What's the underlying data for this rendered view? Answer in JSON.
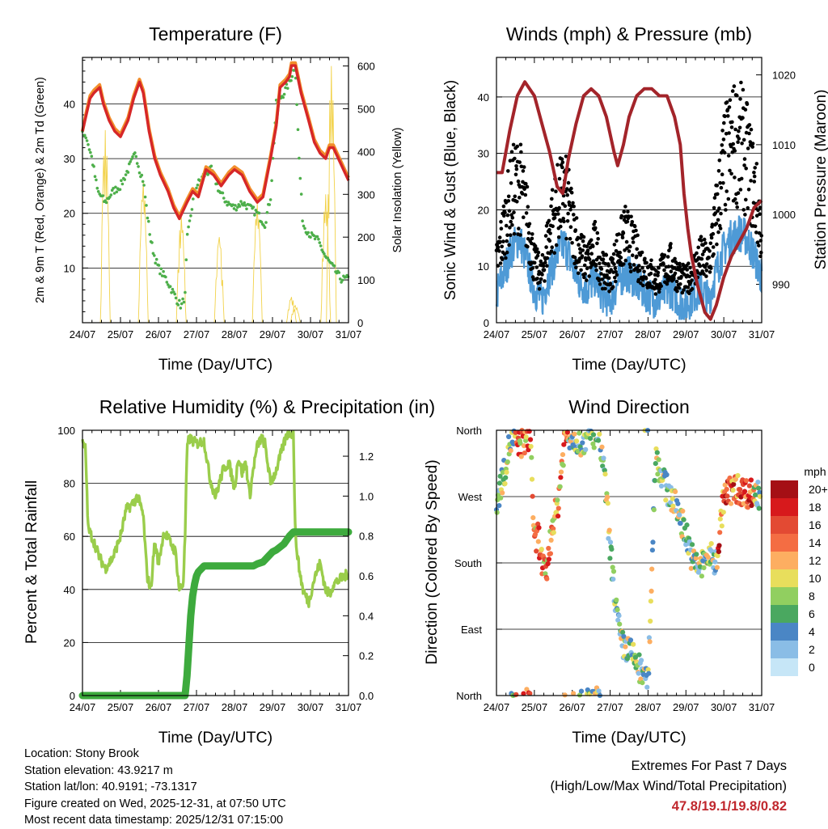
{
  "chart_data": [
    {
      "id": "temperature",
      "type": "line",
      "title": "Temperature (F)",
      "xlabel": "Time (Day/UTC)",
      "ylabel": "2m & 9m T (Red, Orange) & 2m Td (Green)",
      "y2label": "Solar Insolation (Yellow)",
      "categories": [
        "24/07",
        "25/07",
        "26/07",
        "27/07",
        "28/07",
        "29/07",
        "30/07",
        "31/07"
      ],
      "ylim": [
        0,
        48.5
      ],
      "yticks": [
        10,
        20,
        30,
        40
      ],
      "y2lim": [
        0,
        620
      ],
      "y2ticks": [
        0,
        100,
        200,
        300,
        400,
        500,
        600
      ],
      "series": [
        {
          "name": "2m T",
          "color": "#d62728",
          "x": [
            0,
            0.1,
            0.2,
            0.3,
            0.45,
            0.55,
            0.7,
            0.85,
            1.0,
            1.2,
            1.35,
            1.5,
            1.6,
            1.75,
            1.9,
            2.05,
            2.25,
            2.4,
            2.55,
            2.75,
            2.9,
            3.05,
            3.25,
            3.45,
            3.65,
            3.85,
            4.0,
            4.2,
            4.4,
            4.6,
            4.75,
            4.95,
            5.1,
            5.2,
            5.35,
            5.45,
            5.5,
            5.6,
            5.75,
            5.95,
            6.1,
            6.25,
            6.4,
            6.5,
            6.6,
            6.8,
            7.0
          ],
          "values": [
            35,
            38,
            41,
            42,
            43,
            40,
            37,
            35,
            34,
            37,
            41,
            44,
            42,
            35,
            30,
            27,
            24,
            21,
            19,
            22,
            24,
            23,
            28,
            27,
            25,
            27,
            28,
            27,
            24,
            22,
            23,
            30,
            36,
            43,
            44,
            45,
            47,
            47,
            42,
            37,
            33,
            31,
            30,
            32,
            32,
            29,
            26
          ]
        },
        {
          "name": "9m T",
          "color": "#f28e2b",
          "x": [
            0,
            0.1,
            0.2,
            0.3,
            0.45,
            0.55,
            0.7,
            0.85,
            1.0,
            1.2,
            1.35,
            1.5,
            1.6,
            1.75,
            1.9,
            2.05,
            2.25,
            2.4,
            2.55,
            2.75,
            2.9,
            3.05,
            3.25,
            3.45,
            3.65,
            3.85,
            4.0,
            4.2,
            4.4,
            4.6,
            4.75,
            4.95,
            5.1,
            5.2,
            5.35,
            5.45,
            5.5,
            5.6,
            5.75,
            5.95,
            6.1,
            6.25,
            6.4,
            6.5,
            6.6,
            6.8,
            7.0
          ],
          "values": [
            35,
            38.5,
            41.5,
            42.5,
            43.5,
            40.5,
            37.5,
            35.5,
            34.5,
            37.5,
            41.5,
            44.5,
            42.5,
            35.5,
            30.5,
            27.5,
            24.5,
            21.5,
            19.5,
            22.5,
            24.5,
            23.5,
            28.5,
            27.5,
            25.5,
            27.5,
            28.5,
            27.5,
            24.5,
            22.5,
            23.5,
            30.5,
            36.5,
            43.5,
            44.5,
            45.5,
            47.5,
            47.5,
            42.5,
            37.5,
            33.5,
            31.5,
            30.5,
            32.5,
            32.5,
            29.5,
            26.5
          ]
        },
        {
          "name": "2m Td",
          "color": "#4daf4a",
          "x": [
            0,
            0.1,
            0.25,
            0.4,
            0.6,
            0.8,
            1.0,
            1.2,
            1.4,
            1.5,
            1.6,
            1.7,
            1.8,
            1.9,
            2.0,
            2.2,
            2.35,
            2.5,
            2.6,
            2.7,
            2.75,
            2.9,
            3.0,
            3.2,
            3.4,
            3.6,
            3.8,
            4.0,
            4.2,
            4.4,
            4.6,
            4.8,
            4.95,
            5.1,
            5.3,
            5.45,
            5.5,
            5.6,
            5.7,
            5.8,
            6.0,
            6.2,
            6.4,
            6.6,
            6.8,
            7.0
          ],
          "values": [
            35,
            34,
            30,
            24,
            22,
            24,
            25,
            28,
            31,
            28,
            26,
            20,
            15,
            12,
            10,
            8,
            6,
            4,
            3,
            5,
            15,
            22,
            25,
            27,
            28,
            24,
            22,
            21,
            22,
            21,
            20,
            18,
            23,
            40,
            42,
            44,
            45,
            47,
            30,
            18,
            16,
            15,
            12,
            10,
            8,
            8
          ]
        }
      ],
      "insolation_peaks": [
        {
          "day": 0.6,
          "value": 450
        },
        {
          "day": 1.6,
          "value": 330
        },
        {
          "day": 2.6,
          "value": 250
        },
        {
          "day": 3.6,
          "value": 200
        },
        {
          "day": 4.6,
          "value": 280
        },
        {
          "day": 5.5,
          "value": 60
        },
        {
          "day": 5.6,
          "value": 40
        },
        {
          "day": 6.4,
          "value": 300
        },
        {
          "day": 6.55,
          "value": 600
        }
      ]
    },
    {
      "id": "winds",
      "type": "scatter",
      "title": "Winds (mph) & Pressure (mb)",
      "xlabel": "Time (Day/UTC)",
      "ylabel": "Sonic Wind & Gust (Blue, Black)",
      "y2label": "Station Pressure (Maroon)",
      "categories": [
        "24/07",
        "25/07",
        "26/07",
        "27/07",
        "28/07",
        "29/07",
        "30/07",
        "31/07"
      ],
      "ylim": [
        0,
        47
      ],
      "yticks": [
        0,
        10,
        20,
        30,
        40
      ],
      "y2lim": [
        984.5,
        1022.5
      ],
      "y2ticks": [
        990,
        1000,
        1010,
        1020
      ],
      "wind_mean": {
        "x": [
          0,
          0.2,
          0.4,
          0.6,
          0.8,
          1.0,
          1.2,
          1.4,
          1.6,
          1.8,
          2.0,
          2.2,
          2.4,
          2.6,
          2.8,
          3.0,
          3.2,
          3.4,
          3.6,
          3.8,
          4.0,
          4.2,
          4.4,
          4.6,
          4.8,
          5.0,
          5.2,
          5.4,
          5.6,
          5.8,
          6.0,
          6.2,
          6.4,
          6.6,
          6.8,
          7.0
        ],
        "values": [
          5,
          9,
          13,
          15,
          11,
          6,
          4,
          9,
          12,
          14,
          10,
          7,
          6,
          8,
          5,
          4,
          7,
          9,
          8,
          6,
          5,
          4,
          5,
          6,
          4,
          3,
          5,
          6,
          4,
          9,
          13,
          15,
          16,
          15,
          12,
          8
        ]
      },
      "gust_mean": {
        "x": [
          0,
          0.2,
          0.4,
          0.6,
          0.8,
          1.0,
          1.2,
          1.4,
          1.6,
          1.8,
          2.0,
          2.2,
          2.4,
          2.6,
          2.8,
          3.0,
          3.2,
          3.4,
          3.6,
          3.8,
          4.0,
          4.2,
          4.4,
          4.6,
          4.8,
          5.0,
          5.2,
          5.4,
          5.6,
          5.8,
          6.0,
          6.2,
          6.4,
          6.6,
          6.8,
          7.0
        ],
        "values": [
          10,
          16,
          22,
          24,
          18,
          10,
          8,
          16,
          20,
          22,
          17,
          12,
          10,
          13,
          9,
          8,
          12,
          15,
          13,
          10,
          9,
          7,
          9,
          10,
          8,
          7,
          9,
          11,
          10,
          18,
          27,
          30,
          31,
          28,
          23,
          15
        ]
      },
      "pressure": {
        "x": [
          0,
          0.15,
          0.35,
          0.55,
          0.75,
          1.0,
          1.2,
          1.4,
          1.6,
          1.75,
          1.9,
          2.1,
          2.3,
          2.5,
          2.7,
          2.9,
          3.1,
          3.2,
          3.35,
          3.5,
          3.7,
          3.9,
          4.1,
          4.3,
          4.5,
          4.7,
          4.85,
          4.95,
          5.05,
          5.15,
          5.3,
          5.5,
          5.65,
          5.8,
          6.0,
          6.2,
          6.4,
          6.6,
          6.8,
          7.0
        ],
        "values": [
          1006,
          1006,
          1012,
          1017,
          1019,
          1017,
          1013,
          1009,
          1004,
          1003,
          1008,
          1013,
          1017,
          1018,
          1017,
          1014,
          1009,
          1007,
          1010,
          1014,
          1017,
          1018,
          1018,
          1017,
          1017,
          1014,
          1010,
          1003,
          998,
          994,
          990,
          986,
          985,
          987,
          991,
          994,
          996,
          998,
          1001,
          1002
        ]
      },
      "gust_max": 44.9
    },
    {
      "id": "humidity",
      "type": "line",
      "title": "Relative Humidity (%) & Precipitation (in)",
      "xlabel": "Time (Day/UTC)",
      "ylabel": "Percent & Total Rainfall",
      "categories": [
        "24/07",
        "25/07",
        "26/07",
        "27/07",
        "28/07",
        "29/07",
        "30/07",
        "31/07"
      ],
      "ylim": [
        0,
        100
      ],
      "yticks": [
        0,
        20,
        40,
        60,
        80,
        100
      ],
      "y2lim": [
        0,
        1.33
      ],
      "y2ticks": [
        "0.0",
        "0.2",
        "0.4",
        "0.6",
        "0.8",
        "1.0",
        "1.2"
      ],
      "series": [
        {
          "name": "Relative Humidity",
          "color": "#9acd4b",
          "axis": "left",
          "x": [
            0,
            0.08,
            0.15,
            0.3,
            0.45,
            0.6,
            0.8,
            1.0,
            1.15,
            1.3,
            1.45,
            1.6,
            1.7,
            1.8,
            1.9,
            2.0,
            2.15,
            2.3,
            2.45,
            2.55,
            2.65,
            2.7,
            2.75,
            2.8,
            2.9,
            3.0,
            3.2,
            3.35,
            3.5,
            3.6,
            3.7,
            3.85,
            4.0,
            4.1,
            4.2,
            4.3,
            4.4,
            4.5,
            4.6,
            4.7,
            4.8,
            4.95,
            5.1,
            5.3,
            5.4,
            5.5,
            5.55,
            5.6,
            5.7,
            5.8,
            5.95,
            6.1,
            6.25,
            6.4,
            6.5,
            6.6,
            6.8,
            7.0
          ],
          "values": [
            95,
            93,
            63,
            58,
            52,
            48,
            52,
            60,
            70,
            72,
            75,
            68,
            45,
            40,
            58,
            50,
            62,
            58,
            54,
            40,
            42,
            60,
            92,
            97,
            96,
            95,
            96,
            82,
            75,
            80,
            85,
            88,
            78,
            90,
            84,
            88,
            75,
            86,
            94,
            97,
            95,
            80,
            85,
            95,
            99,
            99,
            99,
            60,
            48,
            40,
            35,
            44,
            50,
            40,
            38,
            42,
            44,
            46
          ]
        },
        {
          "name": "Total Precipitation",
          "color": "#3daa3d",
          "axis": "right",
          "x": [
            0,
            2.7,
            2.75,
            2.8,
            2.85,
            2.9,
            2.95,
            3.0,
            3.05,
            3.1,
            3.15,
            3.2,
            3.5,
            3.8,
            4.1,
            4.3,
            4.4,
            4.5,
            4.6,
            4.75,
            4.9,
            5.0,
            5.1,
            5.3,
            5.45,
            5.55,
            5.7,
            6.0,
            6.5,
            7.0
          ],
          "values": [
            0,
            0,
            0.1,
            0.25,
            0.4,
            0.5,
            0.56,
            0.6,
            0.62,
            0.63,
            0.64,
            0.65,
            0.65,
            0.65,
            0.65,
            0.65,
            0.65,
            0.65,
            0.66,
            0.67,
            0.7,
            0.72,
            0.73,
            0.76,
            0.8,
            0.82,
            0.82,
            0.82,
            0.82,
            0.82
          ]
        }
      ]
    },
    {
      "id": "direction",
      "type": "scatter",
      "title": "Wind Direction",
      "xlabel": "Time (Day/UTC)",
      "ylabel": "Direction (Colored By Speed)",
      "categories": [
        "24/07",
        "25/07",
        "26/07",
        "27/07",
        "28/07",
        "29/07",
        "30/07",
        "31/07"
      ],
      "yticks": [
        "North",
        "West",
        "South",
        "East",
        "North"
      ],
      "ylim": [
        0,
        360
      ],
      "direction_track": {
        "x": [
          0,
          0.1,
          0.2,
          0.3,
          0.4,
          0.5,
          0.6,
          0.8,
          0.9,
          1.0,
          1.1,
          1.2,
          1.3,
          1.4,
          1.5,
          1.6,
          1.7,
          1.8,
          2.0,
          2.2,
          2.4,
          2.6,
          2.7,
          2.8,
          2.9,
          3.0,
          3.1,
          3.2,
          3.3,
          3.5,
          3.7,
          3.9,
          4.0,
          4.2,
          4.4,
          4.6,
          4.8,
          5.0,
          5.2,
          5.4,
          5.5,
          5.6,
          5.8,
          6.0,
          6.2,
          6.4,
          6.6,
          6.8,
          7.0
        ],
        "values": [
          255,
          285,
          300,
          330,
          350,
          345,
          340,
          350,
          355,
          200,
          220,
          180,
          160,
          200,
          240,
          250,
          300,
          350,
          355,
          345,
          350,
          355,
          350,
          320,
          270,
          200,
          150,
          100,
          70,
          60,
          45,
          20,
          15,
          330,
          290,
          270,
          250,
          220,
          180,
          175,
          185,
          190,
          180,
          270,
          280,
          280,
          275,
          275,
          270
        ]
      },
      "legend_title": "mph",
      "legend_labels": [
        "20+",
        "18",
        "16",
        "14",
        "12",
        "10",
        "8",
        "6",
        "4",
        "2",
        "0"
      ],
      "legend_colors": [
        "#a50f15",
        "#d7191c",
        "#e34a33",
        "#f46d43",
        "#fdae61",
        "#e8de5c",
        "#91cf60",
        "#4aa860",
        "#4a86c5",
        "#8abde6",
        "#c6e6f7"
      ]
    }
  ],
  "footer": {
    "location": "Location: Stony Brook",
    "elevation": "Station elevation: 43.9217 m",
    "latlon": "Station lat/lon: 40.9191; -73.1317",
    "created": "Figure created on Wed, 2025-12-31, at 07:50 UTC",
    "recent": "Most recent data timestamp: 2025/12/31 07:15:00"
  },
  "extremes": {
    "title": "Extremes For Past 7 Days",
    "subtitle": "(High/Low/Max Wind/Total Precipitation)",
    "values": "47.8/19.1/19.8/0.82"
  }
}
